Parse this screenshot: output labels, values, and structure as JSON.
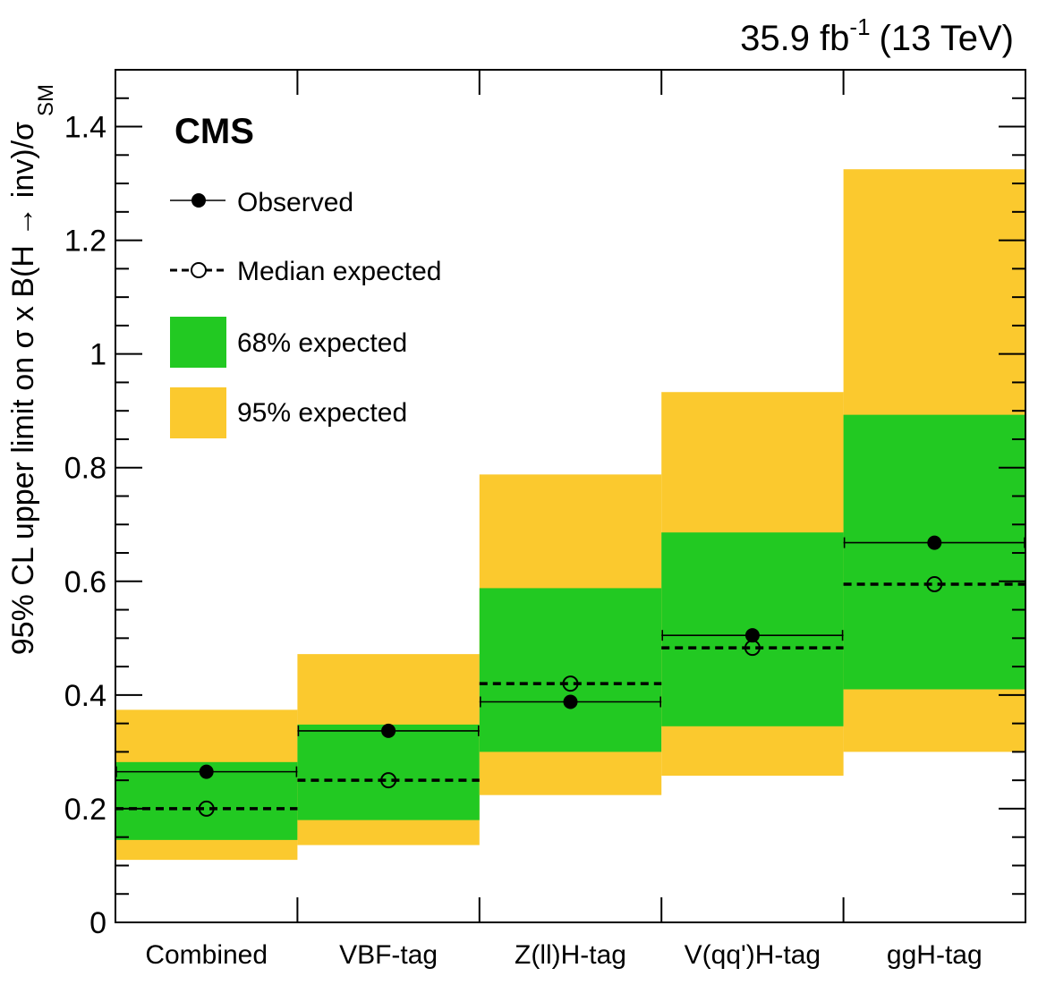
{
  "chart_data": {
    "type": "bar",
    "title": "",
    "categories": [
      "Combined",
      "VBF-tag",
      "Z(ll)H-tag",
      "V(qq')H-tag",
      "ggH-tag"
    ],
    "observed": [
      0.265,
      0.337,
      0.388,
      0.505,
      0.668
    ],
    "median_expected": [
      0.2,
      0.25,
      0.42,
      0.483,
      0.595
    ],
    "band68": [
      [
        0.145,
        0.282
      ],
      [
        0.18,
        0.348
      ],
      [
        0.3,
        0.588
      ],
      [
        0.345,
        0.686
      ],
      [
        0.41,
        0.893
      ]
    ],
    "band95": [
      [
        0.11,
        0.374
      ],
      [
        0.136,
        0.472
      ],
      [
        0.224,
        0.788
      ],
      [
        0.258,
        0.933
      ],
      [
        0.3,
        1.325
      ]
    ],
    "ylim": [
      0,
      1.5
    ],
    "yticks": [
      "0",
      "0.2",
      "0.4",
      "0.6",
      "0.8",
      "1",
      "1.2",
      "1.4"
    ],
    "ylabel": {
      "main": "95% CL upper limit on σ x B(H → inv)/σ",
      "sub": "SM"
    },
    "lumi": {
      "main": "35.9 fb",
      "exp": "-1",
      "energy": "(13 TeV)"
    },
    "experiment": "CMS",
    "legend": {
      "observed": "Observed",
      "median": "Median expected",
      "band68": "68% expected",
      "band95": "95% expected",
      "placement": "top-left"
    },
    "colors": {
      "band68": "#22c922",
      "band95": "#fbc92e",
      "marker": "#000000"
    },
    "grid": false
  }
}
